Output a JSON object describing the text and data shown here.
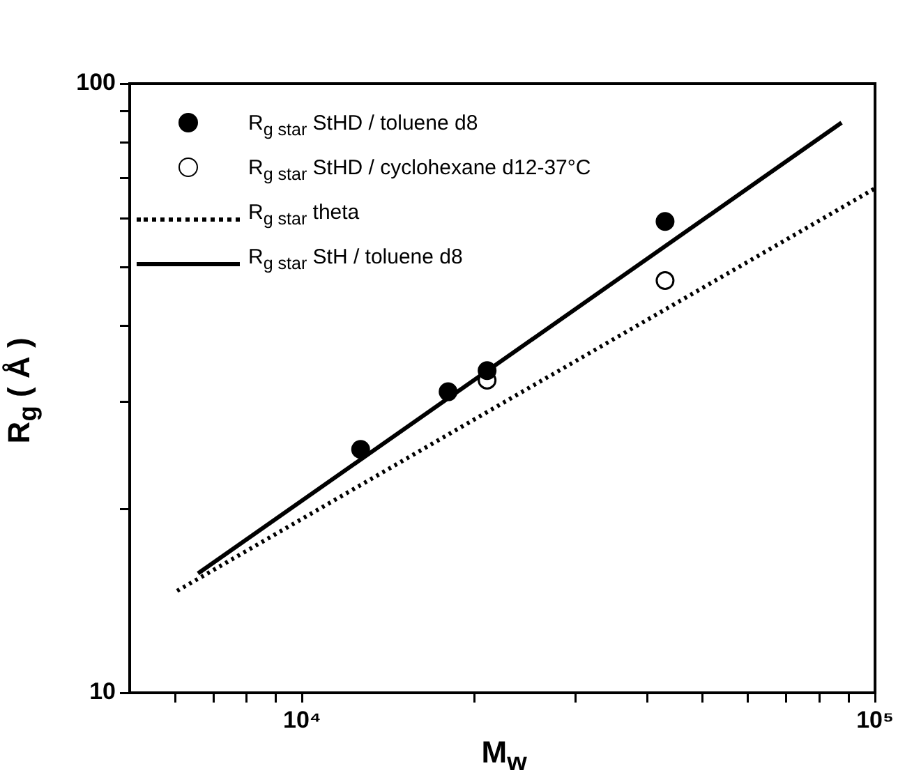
{
  "chart_data": {
    "type": "scatter",
    "xlabel": "M$_{w}$",
    "ylabel": "R$_{g}$ ( Å )",
    "log": "xy",
    "grid": false,
    "legend": "top left",
    "marker": "circle",
    "xlim": [
      5000,
      100000
    ],
    "xticks": [
      {
        "value": 6000,
        "label": null
      },
      {
        "value": 7000,
        "label": null
      },
      {
        "value": 8000,
        "label": null
      },
      {
        "value": 9000,
        "label": null
      },
      {
        "value": 10000,
        "label": "10⁴"
      },
      {
        "value": 20000,
        "label": null
      },
      {
        "value": 30000,
        "label": null
      },
      {
        "value": 40000,
        "label": null
      },
      {
        "value": 50000,
        "label": null
      },
      {
        "value": 60000,
        "label": null
      },
      {
        "value": 70000,
        "label": null
      },
      {
        "value": 80000,
        "label": null
      },
      {
        "value": 90000,
        "label": null
      },
      {
        "value": 100000,
        "label": "10⁵"
      }
    ],
    "ylim": [
      10,
      100
    ],
    "yticks": [
      10,
      {
        "value": 20,
        "label": null
      },
      {
        "value": 30,
        "label": null
      },
      {
        "value": 40,
        "label": null
      },
      {
        "value": 50,
        "label": null
      },
      {
        "value": 60,
        "label": null
      },
      {
        "value": 70,
        "label": null
      },
      {
        "value": 80,
        "label": null
      },
      {
        "value": 90,
        "label": null
      },
      100
    ],
    "series": [
      {
        "name": "R$_{g star}$ StHD / toluene d8",
        "color": "#000000",
        "x": [
          12650,
          17980,
          21030,
          43000
        ],
        "values": [
          25.1,
          31.2,
          33.8,
          59.4
        ]
      },
      {
        "name": "R$_{g star}$ StHD / cyclohexane d12-37°C",
        "color": "#ffffff",
        "x": [
          21030,
          43000
        ],
        "values": [
          32.6,
          47.5
        ]
      },
      {
        "name": "R$_{g star}$  theta",
        "type": "line",
        "marker": "none",
        "line_style": "dotted",
        "color": "#000000",
        "x": [
          6050,
          100000
        ],
        "values": [
          14.7,
          67.3
        ]
      },
      {
        "name": "R$_{g star}$ StH / toluene d8",
        "type": "line",
        "marker": "none",
        "line_style": "solid",
        "color": "#000000",
        "x": [
          6580,
          87400
        ],
        "values": [
          15.7,
          86.3
        ]
      }
    ]
  }
}
